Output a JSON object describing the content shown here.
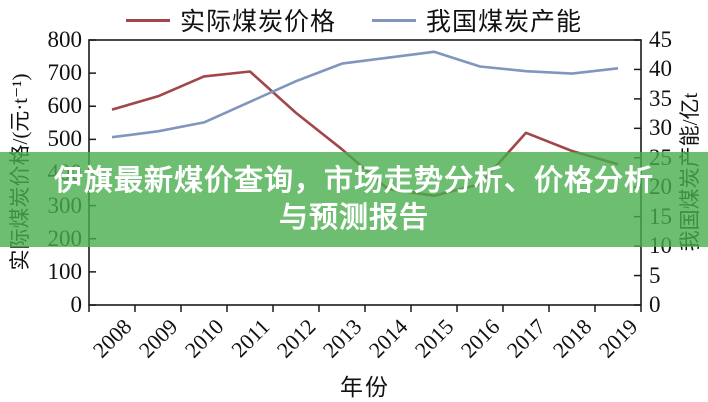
{
  "banner": {
    "line1": "伊旗最新煤价查询，市场走势分析、价格分析",
    "line2": "与预测报告",
    "bg_color": "rgba(72,174,76,0.80)",
    "text_color": "#ffffff"
  },
  "chart_data": {
    "type": "line",
    "title": "",
    "categories": [
      "2008",
      "2009",
      "2010",
      "2011",
      "2012",
      "2013",
      "2014",
      "2015",
      "2016",
      "2017",
      "2018",
      "2019"
    ],
    "series": [
      {
        "name": "实际煤炭价格",
        "axis": "left",
        "color": "#a1474b",
        "values": [
          590,
          630,
          690,
          705,
          580,
          470,
          350,
          330,
          365,
          520,
          465,
          425
        ]
      },
      {
        "name": "我国煤炭产能",
        "axis": "right",
        "color": "#8295bf",
        "values": [
          28.5,
          29.5,
          31,
          34.5,
          38,
          41,
          42,
          43,
          40.5,
          39.7,
          39.3,
          40.2
        ]
      }
    ],
    "left_axis": {
      "label": "实际煤炭价格/(元·t⁻¹)",
      "min": 0,
      "max": 800,
      "step": 100
    },
    "right_axis": {
      "label": "我国煤炭产能/亿t",
      "min": 0,
      "max": 45,
      "step": 5
    },
    "x_axis": {
      "label": "年份"
    },
    "legend_position": "top",
    "grid": false,
    "frame_color": "#1a1a1a",
    "background": "#ffffff"
  }
}
